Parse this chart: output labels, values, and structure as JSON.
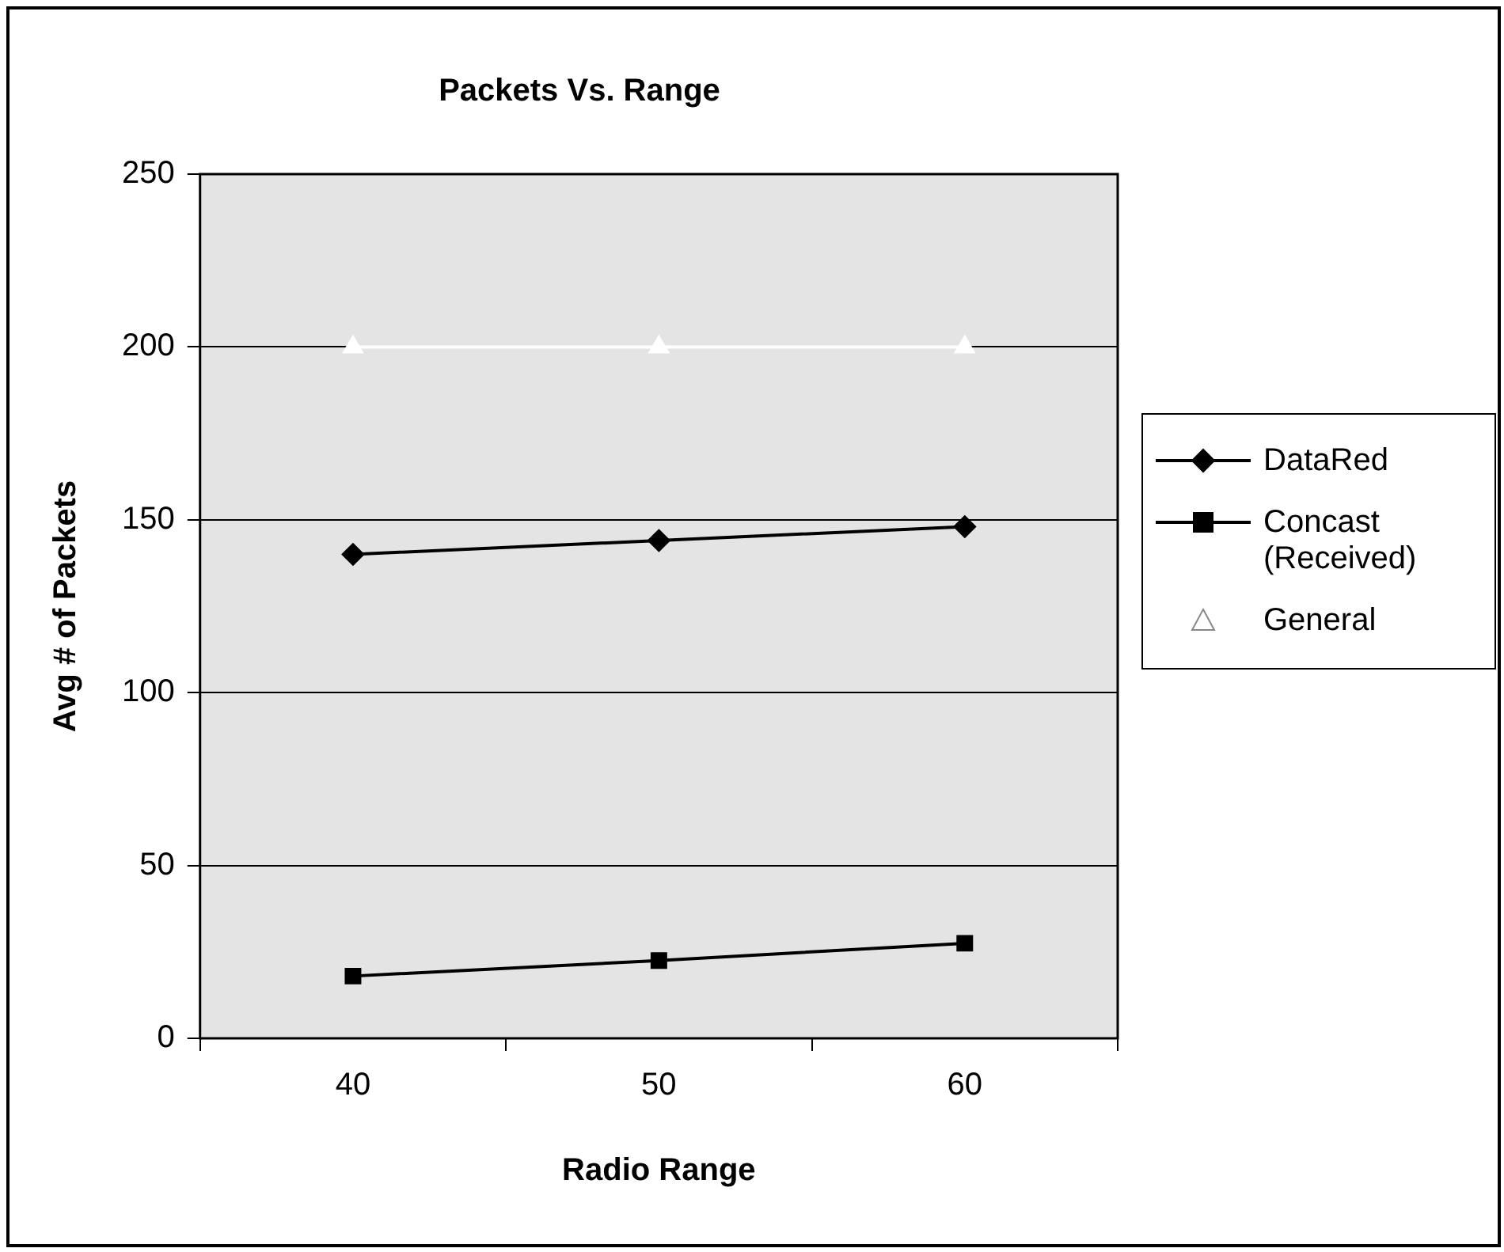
{
  "chart_data": {
    "type": "line",
    "title": "Packets Vs. Range",
    "xlabel": "Radio Range",
    "ylabel": "Avg # of Packets",
    "categories": [
      "40",
      "50",
      "60"
    ],
    "series": [
      {
        "name": "DataRed",
        "color": "#000000",
        "marker": "diamond",
        "values": [
          140,
          144,
          148
        ]
      },
      {
        "name": "Concast (Received)",
        "color": "#000000",
        "marker": "square",
        "values": [
          18,
          22.5,
          27.5
        ]
      },
      {
        "name": "General",
        "color": "#ffffff",
        "marker": "triangle",
        "values": [
          200,
          200,
          200
        ]
      }
    ],
    "ylim": [
      0,
      250
    ],
    "yticks": [
      0,
      50,
      100,
      150,
      200,
      250
    ],
    "grid": "y",
    "legend": "right"
  }
}
